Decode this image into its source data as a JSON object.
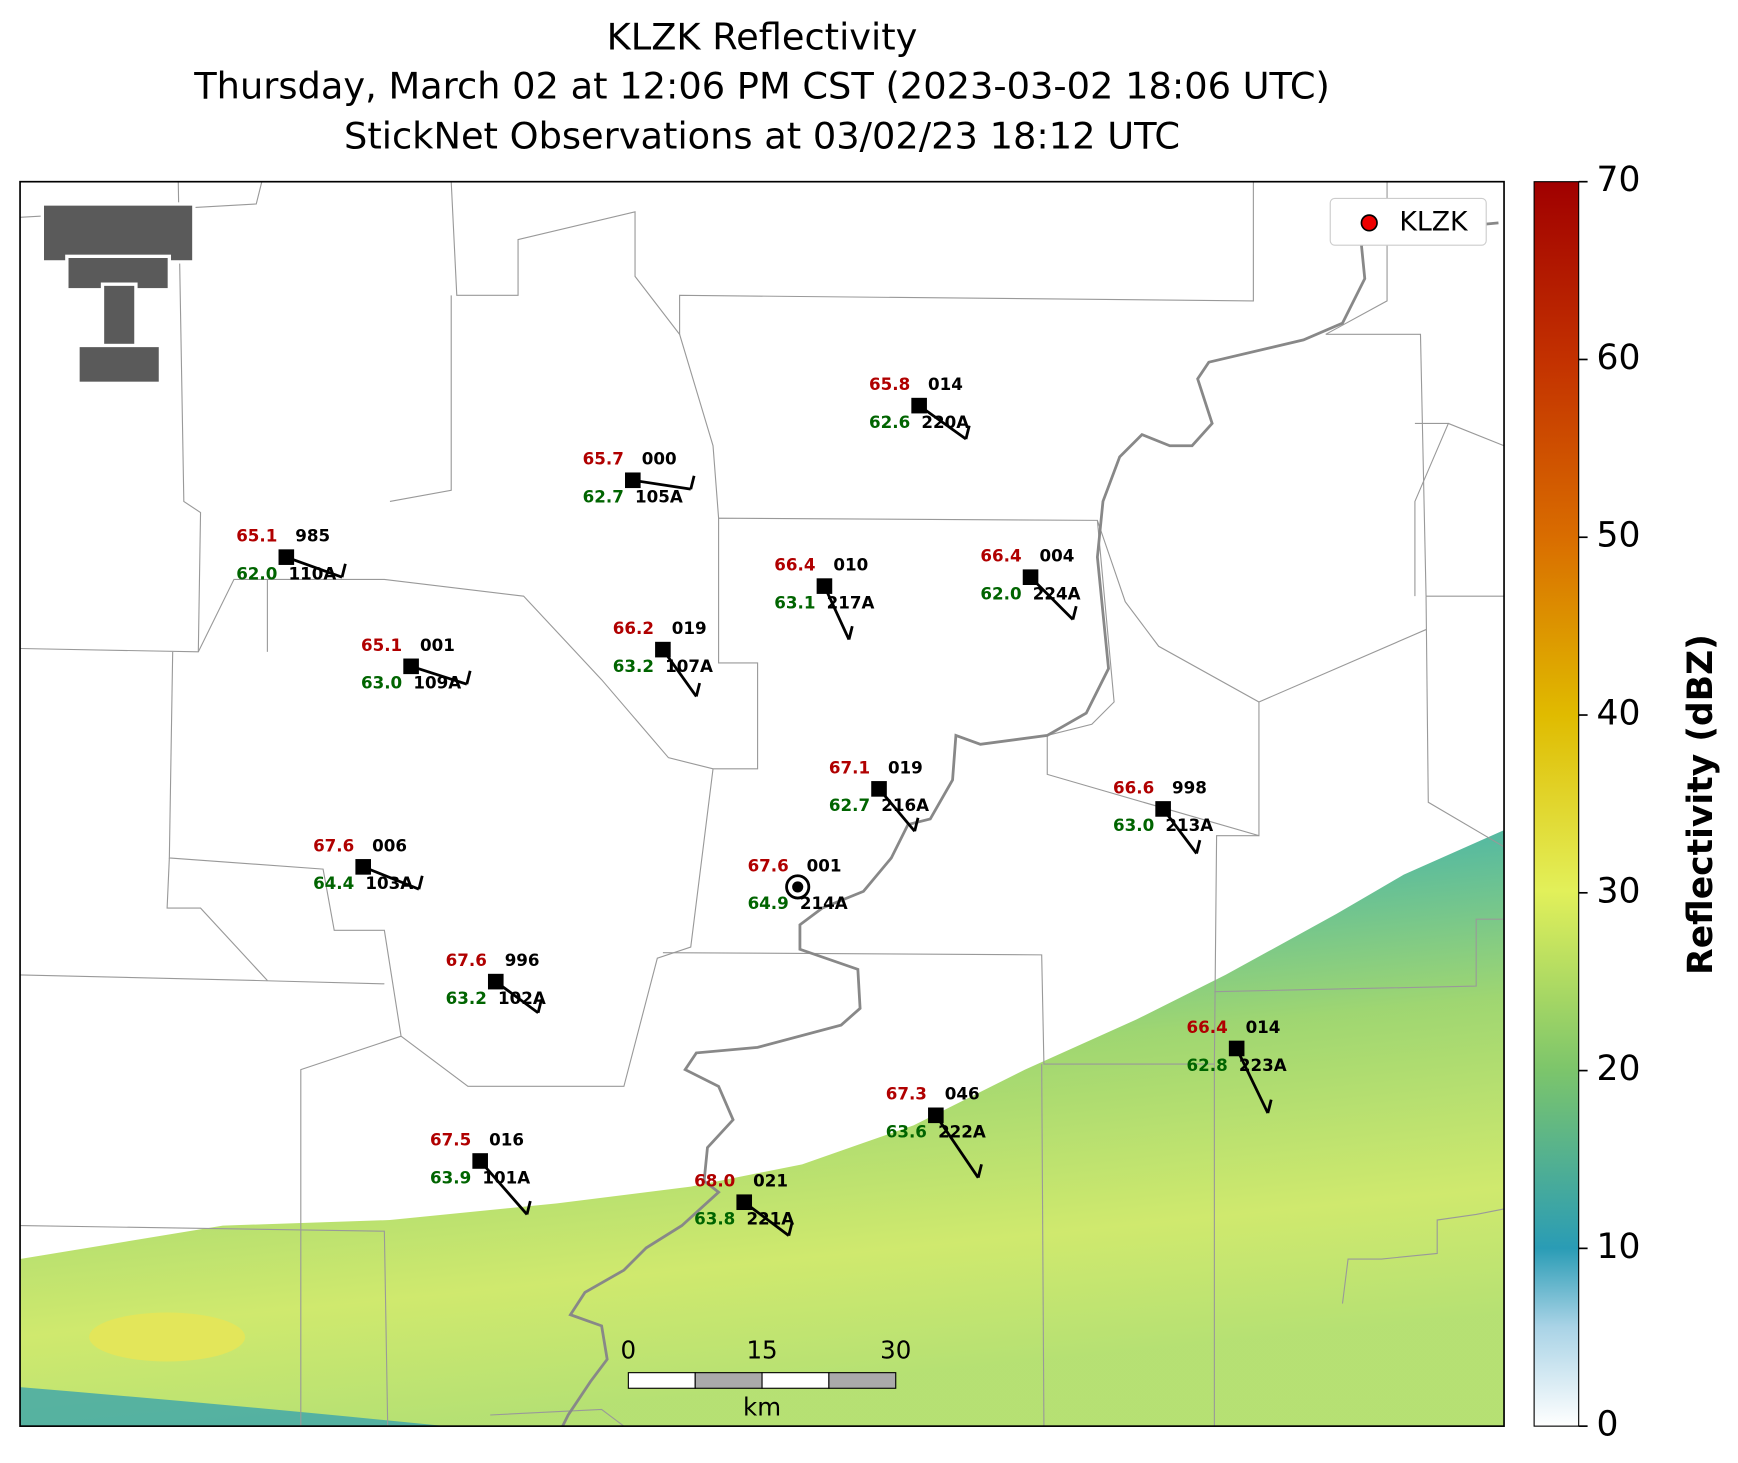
{
  "header": {
    "title": "KLZK Reflectivity",
    "subtitle": "Thursday, March 02 at 12:06 PM CST (2023-03-02 18:06 UTC)",
    "subtitle2": "StickNet Observations at 03/02/23 18:12 UTC"
  },
  "legend": {
    "label": "KLZK"
  },
  "colorbar": {
    "label": "Reflectivity (dBZ)",
    "lim": [
      0,
      70
    ],
    "ticks": [
      0,
      10,
      20,
      30,
      40,
      50,
      60,
      70
    ]
  },
  "scale_bar": {
    "ticks": [
      0,
      15,
      30
    ],
    "unit": "km"
  },
  "stations": [
    {
      "temp": "65.8",
      "pressure": "014",
      "dewpoint": "62.6",
      "id": "220A"
    },
    {
      "temp": "65.7",
      "pressure": "000",
      "dewpoint": "62.7",
      "id": "105A"
    },
    {
      "temp": "65.1",
      "pressure": "985",
      "dewpoint": "62.0",
      "id": "110A"
    },
    {
      "temp": "66.4",
      "pressure": "010",
      "dewpoint": "63.1",
      "id": "217A"
    },
    {
      "temp": "66.4",
      "pressure": "004",
      "dewpoint": "62.0",
      "id": "224A"
    },
    {
      "temp": "66.2",
      "pressure": "019",
      "dewpoint": "63.2",
      "id": "107A"
    },
    {
      "temp": "65.1",
      "pressure": "001",
      "dewpoint": "63.0",
      "id": "109A"
    },
    {
      "temp": "67.1",
      "pressure": "019",
      "dewpoint": "62.7",
      "id": "216A"
    },
    {
      "temp": "66.6",
      "pressure": "998",
      "dewpoint": "63.0",
      "id": "213A"
    },
    {
      "temp": "67.6",
      "pressure": "006",
      "dewpoint": "64.4",
      "id": "103A"
    },
    {
      "temp": "67.6",
      "pressure": "001",
      "dewpoint": "64.9",
      "id": "214A"
    },
    {
      "temp": "67.6",
      "pressure": "996",
      "dewpoint": "63.2",
      "id": "102A"
    },
    {
      "temp": "66.4",
      "pressure": "014",
      "dewpoint": "62.8",
      "id": "223A"
    },
    {
      "temp": "67.3",
      "pressure": "046",
      "dewpoint": "63.6",
      "id": "222A"
    },
    {
      "temp": "67.5",
      "pressure": "016",
      "dewpoint": "63.9",
      "id": "101A"
    },
    {
      "temp": "68.0",
      "pressure": "021",
      "dewpoint": "63.8",
      "id": "221A"
    }
  ]
}
